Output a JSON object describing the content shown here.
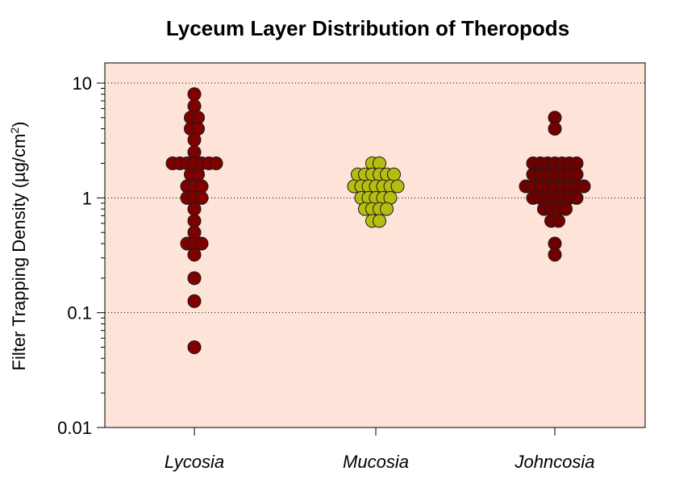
{
  "chart_data": {
    "type": "scatter",
    "subtype": "beeswarm",
    "title": "Lyceum Layer Distribution of Theropods",
    "ylabel": {
      "main": "Filter Trapping Density (",
      "unit_base": "µg/cm",
      "unit_sup": "2",
      "close": ")"
    },
    "xlabel": "",
    "yscale": "log",
    "ylim": [
      0.01,
      10
    ],
    "yticks": [
      0.01,
      0.1,
      1,
      10
    ],
    "ytick_labels": [
      "0.01",
      "0.1",
      "1",
      "10"
    ],
    "grid": "horizontal-dotted-major",
    "legend": "none",
    "plot_background": "#fde3d8",
    "categories": [
      "Lycosia",
      "Mucosia",
      "Johncosia"
    ],
    "series": [
      {
        "category": "Lycosia",
        "color": "#800000",
        "values": [
          8,
          6.3,
          5,
          5,
          4,
          4,
          3.2,
          2.5,
          2,
          2,
          2,
          2,
          2,
          2,
          2,
          1.6,
          1.6,
          1.26,
          1.26,
          1.26,
          1,
          1,
          1,
          0.8,
          0.63,
          0.5,
          0.4,
          0.4,
          0.4,
          0.32,
          0.2,
          0.126,
          0.05
        ]
      },
      {
        "category": "Mucosia",
        "color": "#b5bd10",
        "values": [
          2,
          2,
          1.6,
          1.6,
          1.6,
          1.6,
          1.6,
          1.6,
          1.26,
          1.26,
          1.26,
          1.26,
          1.26,
          1.26,
          1.26,
          1,
          1,
          1,
          1,
          1,
          0.8,
          0.8,
          0.8,
          0.8,
          0.63,
          0.63
        ]
      },
      {
        "category": "Johncosia",
        "color": "#700000",
        "values": [
          5,
          4,
          2,
          2,
          2,
          2,
          2,
          2,
          2,
          1.6,
          1.6,
          1.6,
          1.6,
          1.6,
          1.6,
          1.6,
          1.26,
          1.26,
          1.26,
          1.26,
          1.26,
          1.26,
          1.26,
          1.26,
          1.26,
          1,
          1,
          1,
          1,
          1,
          1,
          1,
          0.8,
          0.8,
          0.8,
          0.8,
          0.63,
          0.63,
          0.4,
          0.32
        ]
      }
    ]
  }
}
